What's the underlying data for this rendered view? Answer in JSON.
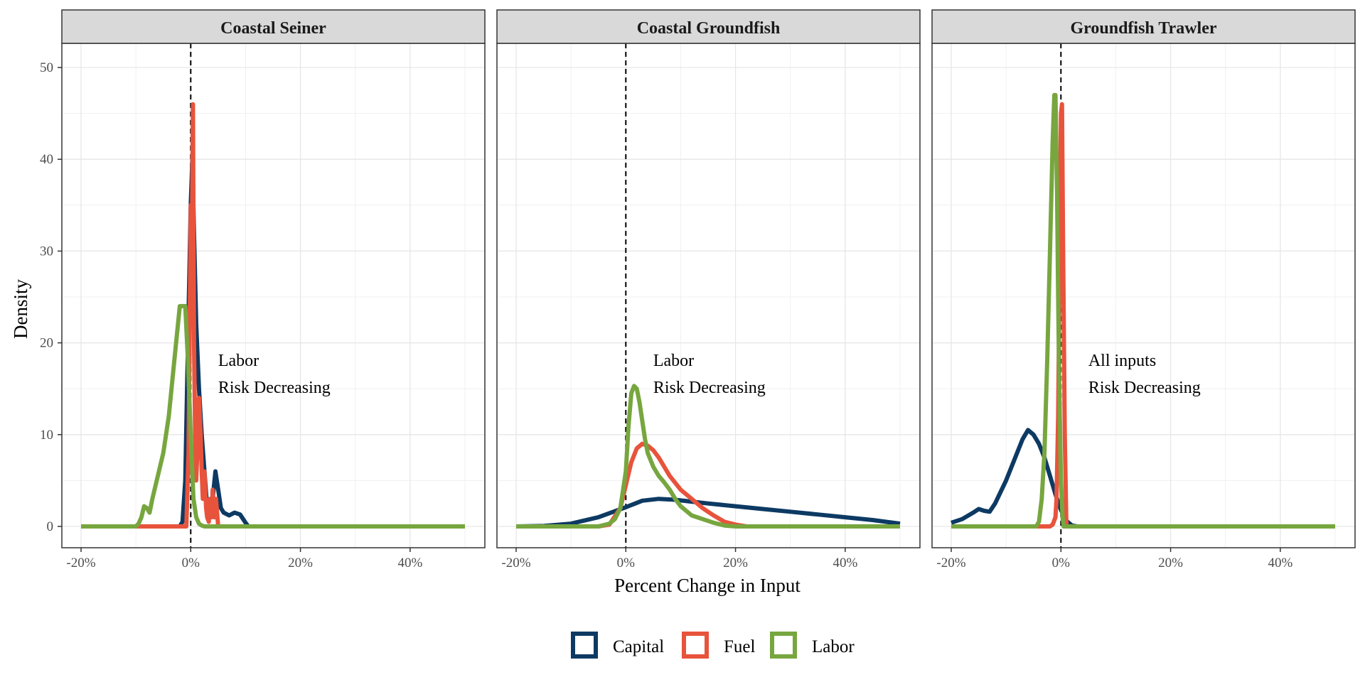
{
  "chart_data": {
    "type": "line",
    "xlabel": "Percent Change in Input",
    "ylabel": "Density",
    "xlim": [
      -0.2,
      0.5
    ],
    "ylim": [
      0,
      50
    ],
    "x_ticks": [
      {
        "value": -0.2,
        "label": "-20%"
      },
      {
        "value": 0.0,
        "label": "0%"
      },
      {
        "value": 0.2,
        "label": "20%"
      },
      {
        "value": 0.4,
        "label": "40%"
      }
    ],
    "y_ticks": [
      {
        "value": 0,
        "label": "0"
      },
      {
        "value": 10,
        "label": "10"
      },
      {
        "value": 20,
        "label": "20"
      },
      {
        "value": 30,
        "label": "30"
      },
      {
        "value": 40,
        "label": "40"
      },
      {
        "value": 50,
        "label": "50"
      }
    ],
    "reference_line": {
      "x": 0,
      "style": "dashed",
      "color": "#000000"
    },
    "grid": true,
    "legend": {
      "position": "bottom",
      "items": [
        {
          "name": "Capital",
          "color": "#0d3a63"
        },
        {
          "name": "Fuel",
          "color": "#e8533c"
        },
        {
          "name": "Labor",
          "color": "#77a63f"
        }
      ]
    },
    "panels": [
      {
        "title": "Coastal Seiner",
        "annotation": [
          "Labor",
          "Risk Decreasing"
        ],
        "series": [
          {
            "name": "Capital",
            "x": [
              -0.2,
              -0.02,
              -0.015,
              -0.01,
              -0.005,
              0.0,
              0.003,
              0.006,
              0.01,
              0.015,
              0.02,
              0.025,
              0.03,
              0.035,
              0.04,
              0.045,
              0.05,
              0.055,
              0.06,
              0.07,
              0.08,
              0.09,
              0.1,
              0.105,
              0.5
            ],
            "y": [
              0,
              0,
              0.5,
              5,
              20,
              35,
              40,
              32,
              22,
              15,
              10,
              6,
              2,
              1.5,
              3,
              6,
              4,
              2,
              1.5,
              1.2,
              1.5,
              1.3,
              0.4,
              0,
              0
            ]
          },
          {
            "name": "Fuel",
            "x": [
              -0.2,
              -0.1,
              -0.02,
              -0.008,
              -0.004,
              0.0,
              0.002,
              0.004,
              0.006,
              0.008,
              0.01,
              0.012,
              0.015,
              0.018,
              0.02,
              0.022,
              0.025,
              0.028,
              0.03,
              0.033,
              0.035,
              0.038,
              0.04,
              0.043,
              0.046,
              0.05,
              0.5
            ],
            "y": [
              0,
              0,
              0,
              0,
              8,
              35,
              30,
              46,
              20,
              10,
              5,
              8,
              14,
              10,
              6,
              3,
              6,
              2,
              1,
              0.5,
              3,
              1,
              4,
              1,
              3,
              0,
              0
            ]
          },
          {
            "name": "Labor",
            "x": [
              -0.2,
              -0.1,
              -0.095,
              -0.09,
              -0.085,
              -0.08,
              -0.075,
              -0.07,
              -0.06,
              -0.05,
              -0.04,
              -0.03,
              -0.02,
              -0.01,
              -0.005,
              0.0,
              0.005,
              0.01,
              0.015,
              0.02,
              0.025,
              0.5
            ],
            "y": [
              0,
              0,
              0.3,
              1.0,
              2.2,
              2.0,
              1.5,
              3,
              5.5,
              8,
              12,
              18,
              24,
              24,
              18,
              10,
              3,
              1,
              0.3,
              0.1,
              0,
              0
            ]
          }
        ]
      },
      {
        "title": "Coastal Groundfish",
        "annotation": [
          "Labor",
          "Risk Decreasing"
        ],
        "series": [
          {
            "name": "Capital",
            "x": [
              -0.2,
              -0.15,
              -0.1,
              -0.05,
              0.0,
              0.03,
              0.06,
              0.09,
              0.12,
              0.15,
              0.2,
              0.25,
              0.3,
              0.35,
              0.4,
              0.45,
              0.5
            ],
            "y": [
              0,
              0.05,
              0.3,
              1.0,
              2.1,
              2.8,
              3.0,
              2.9,
              2.7,
              2.5,
              2.2,
              1.9,
              1.6,
              1.3,
              1.0,
              0.7,
              0.3
            ]
          },
          {
            "name": "Fuel",
            "x": [
              -0.2,
              -0.05,
              -0.03,
              -0.01,
              0.0,
              0.01,
              0.02,
              0.03,
              0.04,
              0.05,
              0.06,
              0.07,
              0.08,
              0.1,
              0.12,
              0.14,
              0.16,
              0.18,
              0.2,
              0.22,
              0.5
            ],
            "y": [
              0,
              0,
              0.2,
              2,
              4.5,
              7,
              8.5,
              9,
              8.8,
              8.3,
              7.5,
              6.5,
              5.5,
              4,
              3,
              2,
              1.2,
              0.5,
              0.2,
              0,
              0
            ]
          },
          {
            "name": "Labor",
            "x": [
              -0.2,
              -0.05,
              -0.03,
              -0.02,
              -0.01,
              0.0,
              0.005,
              0.01,
              0.015,
              0.02,
              0.025,
              0.03,
              0.035,
              0.04,
              0.05,
              0.06,
              0.07,
              0.08,
              0.09,
              0.1,
              0.12,
              0.14,
              0.16,
              0.18,
              0.2,
              0.5
            ],
            "y": [
              0,
              0,
              0.3,
              0.8,
              2,
              6,
              11,
              14.5,
              15.3,
              15,
              13.5,
              11.5,
              9.5,
              8,
              6.5,
              5.5,
              4.8,
              4,
              3,
              2.2,
              1.2,
              0.8,
              0.4,
              0.1,
              0,
              0
            ]
          }
        ]
      },
      {
        "title": "Groundfish Trawler",
        "annotation": [
          "All inputs",
          "Risk Decreasing"
        ],
        "series": [
          {
            "name": "Capital",
            "x": [
              -0.2,
              -0.18,
              -0.16,
              -0.15,
              -0.14,
              -0.13,
              -0.12,
              -0.1,
              -0.08,
              -0.07,
              -0.06,
              -0.05,
              -0.04,
              -0.03,
              -0.02,
              -0.01,
              0.0,
              0.01,
              0.02,
              0.03,
              0.5
            ],
            "y": [
              0.4,
              0.8,
              1.5,
              1.9,
              1.7,
              1.6,
              2.5,
              5,
              8,
              9.5,
              10.5,
              10,
              9,
              7.5,
              5.5,
              3.5,
              1.8,
              0.6,
              0.1,
              0,
              0
            ]
          },
          {
            "name": "Fuel",
            "x": [
              -0.2,
              -0.02,
              -0.015,
              -0.01,
              -0.008,
              -0.005,
              -0.002,
              0.0,
              0.002,
              0.004,
              0.007,
              0.01,
              0.5
            ],
            "y": [
              0,
              0,
              0.2,
              1,
              3,
              12,
              30,
              45,
              46,
              30,
              10,
              0,
              0
            ]
          },
          {
            "name": "Labor",
            "x": [
              -0.2,
              -0.045,
              -0.04,
              -0.035,
              -0.03,
              -0.025,
              -0.02,
              -0.015,
              -0.012,
              -0.01,
              -0.007,
              -0.005,
              -0.003,
              0.0,
              0.003,
              0.005,
              0.5
            ],
            "y": [
              0,
              0,
              0.5,
              3,
              8,
              18,
              30,
              42,
              47,
              47,
              36,
              25,
              15,
              5,
              1,
              0,
              0
            ]
          }
        ]
      }
    ]
  }
}
